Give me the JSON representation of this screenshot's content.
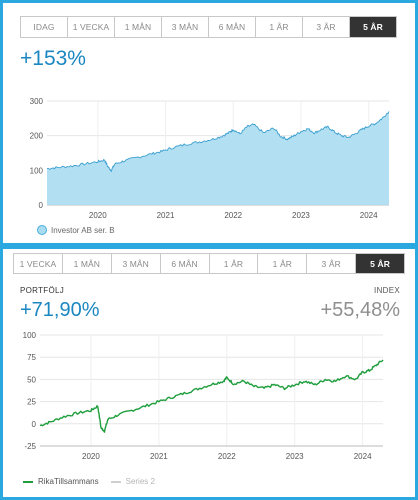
{
  "top_widget": {
    "periods": [
      "IDAG",
      "1 VECKA",
      "1 MÅN",
      "3 MÅN",
      "6 MÅN",
      "1 ÅR",
      "3 ÅR",
      "5 ÅR"
    ],
    "active_period": "5 ÅR",
    "change": "+153%",
    "colors": {
      "fill": "#b3dff2",
      "stroke": "#3a9fd0"
    }
  },
  "bottom_widget": {
    "periods": [
      "1 VECKA",
      "1 MÅN",
      "3 MÅN",
      "6 MÅN",
      "1 ÅR",
      "1 ÅR",
      "3 ÅR",
      "5 ÅR"
    ],
    "active_period": "5 ÅR",
    "portfolio_label": "PORTFÖLJ",
    "portfolio_value": "+71,90%",
    "index_label": "INDEX",
    "index_value": "+55,48%",
    "colors": {
      "line": "#1e9e3c",
      "series2": "#c8c8c8"
    }
  },
  "chart_data": [
    {
      "type": "area",
      "title": "",
      "ylim": [
        0,
        300
      ],
      "yticks": [
        0,
        100,
        200,
        300
      ],
      "xlim": [
        2019.25,
        2024.3
      ],
      "xticks": [
        "2020",
        "2021",
        "2022",
        "2023",
        "2024"
      ],
      "grid": true,
      "legend": "bottom-left",
      "series": [
        {
          "name": "Investor AB ser. B",
          "x": [
            2019.25,
            2019.4,
            2019.6,
            2019.8,
            2020.0,
            2020.1,
            2020.15,
            2020.2,
            2020.25,
            2020.4,
            2020.6,
            2020.8,
            2020.95,
            2021.1,
            2021.3,
            2021.5,
            2021.7,
            2021.85,
            2021.95,
            2022.0,
            2022.1,
            2022.2,
            2022.3,
            2022.45,
            2022.6,
            2022.7,
            2022.8,
            2022.9,
            2023.0,
            2023.1,
            2023.2,
            2023.3,
            2023.4,
            2023.5,
            2023.6,
            2023.7,
            2023.8,
            2023.9,
            2024.0,
            2024.1,
            2024.2,
            2024.3
          ],
          "values": [
            105,
            108,
            112,
            118,
            125,
            130,
            110,
            100,
            118,
            128,
            138,
            148,
            155,
            165,
            175,
            182,
            190,
            200,
            210,
            218,
            205,
            225,
            232,
            208,
            222,
            198,
            190,
            200,
            212,
            220,
            208,
            218,
            225,
            210,
            200,
            195,
            205,
            218,
            228,
            235,
            250,
            270
          ]
        }
      ]
    },
    {
      "type": "line",
      "title": "",
      "ylim": [
        -25,
        100
      ],
      "yticks": [
        -25,
        0,
        25,
        50,
        75,
        100
      ],
      "xlim": [
        2019.25,
        2024.3
      ],
      "xticks": [
        "2020",
        "2021",
        "2022",
        "2023",
        "2024"
      ],
      "grid": true,
      "legend": "bottom-left",
      "series": [
        {
          "name": "RikaTillsammans",
          "x": [
            2019.25,
            2019.4,
            2019.6,
            2019.8,
            2020.0,
            2020.1,
            2020.15,
            2020.2,
            2020.25,
            2020.4,
            2020.6,
            2020.8,
            2021.0,
            2021.2,
            2021.4,
            2021.6,
            2021.8,
            2021.95,
            2022.0,
            2022.1,
            2022.25,
            2022.4,
            2022.55,
            2022.7,
            2022.85,
            2023.0,
            2023.15,
            2023.3,
            2023.45,
            2023.6,
            2023.75,
            2023.9,
            2024.0,
            2024.1,
            2024.2,
            2024.3
          ],
          "values": [
            -2,
            2,
            8,
            12,
            15,
            20,
            -5,
            -8,
            5,
            10,
            15,
            20,
            25,
            30,
            35,
            40,
            45,
            48,
            52,
            45,
            48,
            42,
            40,
            44,
            40,
            44,
            48,
            44,
            50,
            48,
            54,
            50,
            58,
            60,
            66,
            72
          ]
        },
        {
          "name": "Series 2",
          "x": [],
          "values": []
        }
      ]
    }
  ]
}
